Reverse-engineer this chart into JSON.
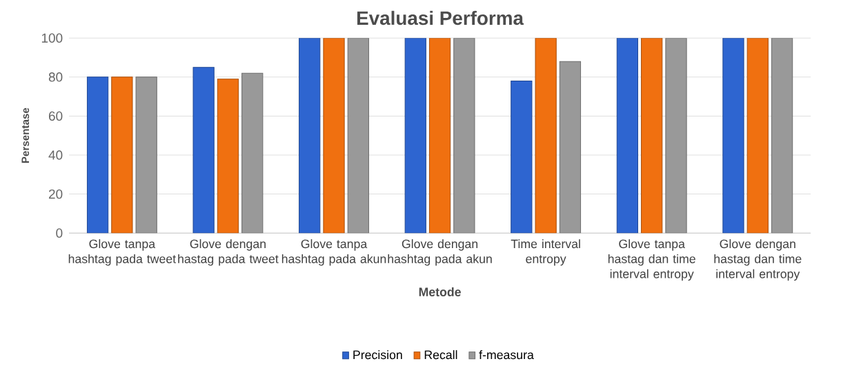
{
  "chart_data": {
    "type": "bar",
    "title": "Evaluasi Performa",
    "xlabel": "Metode",
    "ylabel": "Persentase",
    "categories": [
      "Glove tanpa hashtag pada tweet",
      "Glove dengan hastag pada tweet",
      "Glove tanpa hashtag pada akun",
      "Glove dengan hashtag pada akun",
      "Time interval entropy",
      "Glove tanpa hastag dan time interval entropy",
      "Glove dengan hastag dan time interval entropy"
    ],
    "series": [
      {
        "name": "Precision",
        "color": "#2e65d0",
        "values": [
          80,
          85,
          100,
          100,
          78,
          100,
          100
        ]
      },
      {
        "name": "Recall",
        "color": "#f07010",
        "values": [
          80,
          79,
          100,
          100,
          100,
          100,
          100
        ]
      },
      {
        "name": "f-measura",
        "color": "#999999",
        "values": [
          80,
          82,
          100,
          100,
          88,
          100,
          100
        ]
      }
    ],
    "ylim": [
      0,
      100
    ],
    "yticks": [
      0,
      20,
      40,
      60,
      80,
      100
    ],
    "grid": "y",
    "legend": "bottom"
  }
}
